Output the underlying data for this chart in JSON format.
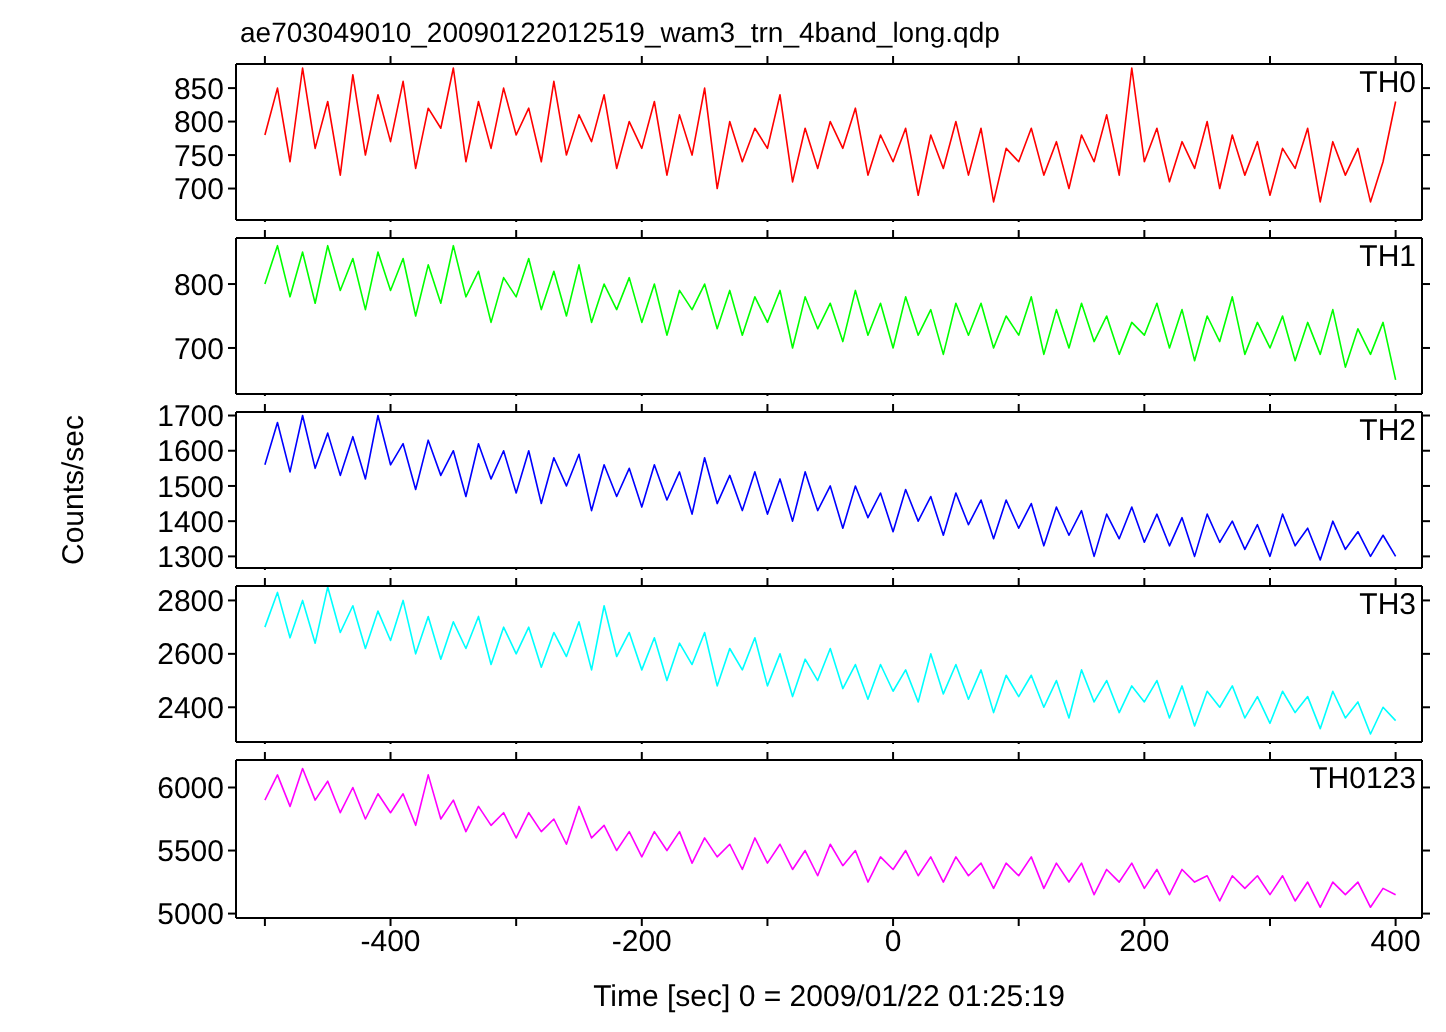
{
  "chart_data": [
    {
      "type": "line",
      "title": "ae703049010_20090122012519_wam3_trn_4band_long.qdp",
      "tick_labels": "y",
      "xlim": [
        -523,
        421
      ],
      "xticks": [
        {
          "value": -500,
          "label": null
        },
        -400,
        {
          "value": -300,
          "label": null
        },
        -200,
        {
          "value": -100,
          "label": null
        },
        0,
        {
          "value": 100,
          "label": null
        },
        200,
        {
          "value": 300,
          "label": null
        },
        400
      ],
      "ylim": [
        653,
        886
      ],
      "yticks": [
        700,
        750,
        800,
        850
      ],
      "x": [
        -500,
        -490,
        -480,
        -470,
        -460,
        -450,
        -440,
        -430,
        -420,
        -410,
        -400,
        -390,
        -380,
        -370,
        -360,
        -350,
        -340,
        -330,
        -320,
        -310,
        -300,
        -290,
        -280,
        -270,
        -260,
        -250,
        -240,
        -230,
        -220,
        -210,
        -200,
        -190,
        -180,
        -170,
        -160,
        -150,
        -140,
        -130,
        -120,
        -110,
        -100,
        -90,
        -80,
        -70,
        -60,
        -50,
        -40,
        -30,
        -20,
        -10,
        0,
        10,
        20,
        30,
        40,
        50,
        60,
        70,
        80,
        90,
        100,
        110,
        120,
        130,
        140,
        150,
        160,
        170,
        180,
        190,
        200,
        210,
        220,
        230,
        240,
        250,
        260,
        270,
        280,
        290,
        300,
        310,
        320,
        330,
        340,
        350,
        360,
        370,
        380,
        390,
        400
      ],
      "series": [
        {
          "name": "TH0",
          "color": "#ff0000",
          "values": [
            780,
            850,
            740,
            880,
            760,
            830,
            720,
            870,
            750,
            840,
            770,
            860,
            730,
            820,
            790,
            880,
            740,
            830,
            760,
            850,
            780,
            820,
            740,
            860,
            750,
            810,
            770,
            840,
            730,
            800,
            760,
            830,
            720,
            810,
            750,
            850,
            700,
            800,
            740,
            790,
            760,
            840,
            710,
            790,
            730,
            800,
            760,
            820,
            720,
            780,
            740,
            790,
            690,
            780,
            730,
            800,
            720,
            790,
            680,
            760,
            740,
            790,
            720,
            770,
            700,
            780,
            740,
            810,
            720,
            880,
            740,
            790,
            710,
            770,
            730,
            800,
            700,
            780,
            720,
            770,
            690,
            760,
            730,
            790,
            680,
            770,
            720,
            760,
            680,
            740,
            830
          ]
        }
      ]
    },
    {
      "type": "line",
      "tick_labels": "y",
      "xlim": [
        -523,
        421
      ],
      "xticks": [
        {
          "value": -500,
          "label": null
        },
        -400,
        {
          "value": -300,
          "label": null
        },
        -200,
        {
          "value": -100,
          "label": null
        },
        0,
        {
          "value": 100,
          "label": null
        },
        200,
        {
          "value": 300,
          "label": null
        },
        400
      ],
      "ylim": [
        628,
        872
      ],
      "yticks": [
        700,
        800
      ],
      "x": [
        -500,
        -490,
        -480,
        -470,
        -460,
        -450,
        -440,
        -430,
        -420,
        -410,
        -400,
        -390,
        -380,
        -370,
        -360,
        -350,
        -340,
        -330,
        -320,
        -310,
        -300,
        -290,
        -280,
        -270,
        -260,
        -250,
        -240,
        -230,
        -220,
        -210,
        -200,
        -190,
        -180,
        -170,
        -160,
        -150,
        -140,
        -130,
        -120,
        -110,
        -100,
        -90,
        -80,
        -70,
        -60,
        -50,
        -40,
        -30,
        -20,
        -10,
        0,
        10,
        20,
        30,
        40,
        50,
        60,
        70,
        80,
        90,
        100,
        110,
        120,
        130,
        140,
        150,
        160,
        170,
        180,
        190,
        200,
        210,
        220,
        230,
        240,
        250,
        260,
        270,
        280,
        290,
        300,
        310,
        320,
        330,
        340,
        350,
        360,
        370,
        380,
        390,
        400
      ],
      "series": [
        {
          "name": "TH1",
          "color": "#00ff00",
          "values": [
            800,
            860,
            780,
            850,
            770,
            860,
            790,
            840,
            760,
            850,
            790,
            840,
            750,
            830,
            770,
            860,
            780,
            820,
            740,
            810,
            780,
            840,
            760,
            820,
            750,
            830,
            740,
            800,
            760,
            810,
            740,
            800,
            720,
            790,
            760,
            800,
            730,
            790,
            720,
            780,
            740,
            790,
            700,
            780,
            730,
            770,
            710,
            790,
            720,
            770,
            700,
            780,
            720,
            760,
            690,
            770,
            720,
            770,
            700,
            750,
            720,
            780,
            690,
            760,
            700,
            770,
            710,
            750,
            690,
            740,
            720,
            770,
            700,
            760,
            680,
            750,
            710,
            780,
            690,
            740,
            700,
            750,
            680,
            740,
            690,
            760,
            670,
            730,
            690,
            740,
            650
          ]
        }
      ]
    },
    {
      "type": "line",
      "tick_labels": "y",
      "ylabel": "Counts/sec",
      "xlim": [
        -523,
        421
      ],
      "xticks": [
        {
          "value": -500,
          "label": null
        },
        -400,
        {
          "value": -300,
          "label": null
        },
        -200,
        {
          "value": -100,
          "label": null
        },
        0,
        {
          "value": 100,
          "label": null
        },
        200,
        {
          "value": 300,
          "label": null
        },
        400
      ],
      "ylim": [
        1267,
        1710
      ],
      "yticks": [
        1300,
        1400,
        1500,
        1600,
        1700
      ],
      "x": [
        -500,
        -490,
        -480,
        -470,
        -460,
        -450,
        -440,
        -430,
        -420,
        -410,
        -400,
        -390,
        -380,
        -370,
        -360,
        -350,
        -340,
        -330,
        -320,
        -310,
        -300,
        -290,
        -280,
        -270,
        -260,
        -250,
        -240,
        -230,
        -220,
        -210,
        -200,
        -190,
        -180,
        -170,
        -160,
        -150,
        -140,
        -130,
        -120,
        -110,
        -100,
        -90,
        -80,
        -70,
        -60,
        -50,
        -40,
        -30,
        -20,
        -10,
        0,
        10,
        20,
        30,
        40,
        50,
        60,
        70,
        80,
        90,
        100,
        110,
        120,
        130,
        140,
        150,
        160,
        170,
        180,
        190,
        200,
        210,
        220,
        230,
        240,
        250,
        260,
        270,
        280,
        290,
        300,
        310,
        320,
        330,
        340,
        350,
        360,
        370,
        380,
        390,
        400
      ],
      "series": [
        {
          "name": "TH2",
          "color": "#0000ff",
          "values": [
            1560,
            1680,
            1540,
            1700,
            1550,
            1650,
            1530,
            1640,
            1520,
            1700,
            1560,
            1620,
            1490,
            1630,
            1530,
            1600,
            1470,
            1620,
            1520,
            1600,
            1480,
            1600,
            1450,
            1580,
            1500,
            1590,
            1430,
            1560,
            1470,
            1550,
            1440,
            1560,
            1460,
            1540,
            1420,
            1580,
            1450,
            1530,
            1430,
            1540,
            1420,
            1520,
            1400,
            1540,
            1430,
            1500,
            1380,
            1500,
            1410,
            1480,
            1370,
            1490,
            1400,
            1470,
            1360,
            1480,
            1390,
            1460,
            1350,
            1460,
            1380,
            1450,
            1330,
            1440,
            1360,
            1430,
            1300,
            1420,
            1350,
            1440,
            1340,
            1420,
            1330,
            1410,
            1300,
            1420,
            1340,
            1400,
            1320,
            1390,
            1300,
            1420,
            1330,
            1380,
            1290,
            1400,
            1320,
            1370,
            1300,
            1360,
            1300
          ]
        }
      ]
    },
    {
      "type": "line",
      "tick_labels": "y",
      "xlim": [
        -523,
        421
      ],
      "xticks": [
        {
          "value": -500,
          "label": null
        },
        -400,
        {
          "value": -300,
          "label": null
        },
        -200,
        {
          "value": -100,
          "label": null
        },
        0,
        {
          "value": 100,
          "label": null
        },
        200,
        {
          "value": 300,
          "label": null
        },
        400
      ],
      "ylim": [
        2270,
        2854
      ],
      "yticks": [
        2400,
        2600,
        2800
      ],
      "x": [
        -500,
        -490,
        -480,
        -470,
        -460,
        -450,
        -440,
        -430,
        -420,
        -410,
        -400,
        -390,
        -380,
        -370,
        -360,
        -350,
        -340,
        -330,
        -320,
        -310,
        -300,
        -290,
        -280,
        -270,
        -260,
        -250,
        -240,
        -230,
        -220,
        -210,
        -200,
        -190,
        -180,
        -170,
        -160,
        -150,
        -140,
        -130,
        -120,
        -110,
        -100,
        -90,
        -80,
        -70,
        -60,
        -50,
        -40,
        -30,
        -20,
        -10,
        0,
        10,
        20,
        30,
        40,
        50,
        60,
        70,
        80,
        90,
        100,
        110,
        120,
        130,
        140,
        150,
        160,
        170,
        180,
        190,
        200,
        210,
        220,
        230,
        240,
        250,
        260,
        270,
        280,
        290,
        300,
        310,
        320,
        330,
        340,
        350,
        360,
        370,
        380,
        390,
        400
      ],
      "series": [
        {
          "name": "TH3",
          "color": "#00ffff",
          "values": [
            2700,
            2830,
            2660,
            2800,
            2640,
            2850,
            2680,
            2780,
            2620,
            2760,
            2650,
            2800,
            2600,
            2740,
            2580,
            2720,
            2620,
            2740,
            2560,
            2700,
            2600,
            2700,
            2550,
            2680,
            2590,
            2720,
            2540,
            2780,
            2590,
            2680,
            2540,
            2660,
            2500,
            2640,
            2560,
            2680,
            2480,
            2620,
            2540,
            2660,
            2480,
            2600,
            2440,
            2580,
            2500,
            2620,
            2470,
            2560,
            2430,
            2560,
            2460,
            2540,
            2420,
            2600,
            2450,
            2560,
            2430,
            2540,
            2380,
            2520,
            2440,
            2520,
            2400,
            2500,
            2360,
            2540,
            2420,
            2500,
            2380,
            2480,
            2420,
            2500,
            2360,
            2480,
            2330,
            2460,
            2400,
            2480,
            2360,
            2440,
            2340,
            2460,
            2380,
            2440,
            2320,
            2460,
            2360,
            2420,
            2300,
            2400,
            2350
          ]
        }
      ]
    },
    {
      "type": "line",
      "xlabel": "Time [sec] 0 = 2009/01/22 01:25:19",
      "xlim": [
        -523,
        421
      ],
      "xticks": [
        {
          "value": -500,
          "label": null
        },
        -400,
        {
          "value": -300,
          "label": null
        },
        -200,
        {
          "value": -100,
          "label": null
        },
        0,
        {
          "value": 100,
          "label": null
        },
        200,
        {
          "value": 300,
          "label": null
        },
        400
      ],
      "ylim": [
        4965,
        6218
      ],
      "yticks": [
        5000,
        5500,
        6000
      ],
      "x": [
        -500,
        -490,
        -480,
        -470,
        -460,
        -450,
        -440,
        -430,
        -420,
        -410,
        -400,
        -390,
        -380,
        -370,
        -360,
        -350,
        -340,
        -330,
        -320,
        -310,
        -300,
        -290,
        -280,
        -270,
        -260,
        -250,
        -240,
        -230,
        -220,
        -210,
        -200,
        -190,
        -180,
        -170,
        -160,
        -150,
        -140,
        -130,
        -120,
        -110,
        -100,
        -90,
        -80,
        -70,
        -60,
        -50,
        -40,
        -30,
        -20,
        -10,
        0,
        10,
        20,
        30,
        40,
        50,
        60,
        70,
        80,
        90,
        100,
        110,
        120,
        130,
        140,
        150,
        160,
        170,
        180,
        190,
        200,
        210,
        220,
        230,
        240,
        250,
        260,
        270,
        280,
        290,
        300,
        310,
        320,
        330,
        340,
        350,
        360,
        370,
        380,
        390,
        400
      ],
      "series": [
        {
          "name": "TH0123",
          "color": "#ff00ff",
          "values": [
            5900,
            6100,
            5850,
            6150,
            5900,
            6050,
            5800,
            6000,
            5750,
            5950,
            5800,
            5950,
            5700,
            6100,
            5750,
            5900,
            5650,
            5850,
            5700,
            5800,
            5600,
            5800,
            5650,
            5750,
            5550,
            5850,
            5600,
            5700,
            5500,
            5650,
            5450,
            5650,
            5500,
            5650,
            5400,
            5600,
            5450,
            5550,
            5350,
            5600,
            5400,
            5550,
            5350,
            5500,
            5300,
            5550,
            5380,
            5500,
            5250,
            5450,
            5350,
            5500,
            5300,
            5450,
            5250,
            5450,
            5300,
            5400,
            5200,
            5400,
            5300,
            5450,
            5200,
            5400,
            5250,
            5400,
            5150,
            5350,
            5250,
            5400,
            5200,
            5350,
            5150,
            5350,
            5250,
            5300,
            5100,
            5300,
            5200,
            5300,
            5150,
            5300,
            5100,
            5250,
            5050,
            5250,
            5150,
            5250,
            5050,
            5200,
            5150
          ]
        }
      ]
    }
  ]
}
